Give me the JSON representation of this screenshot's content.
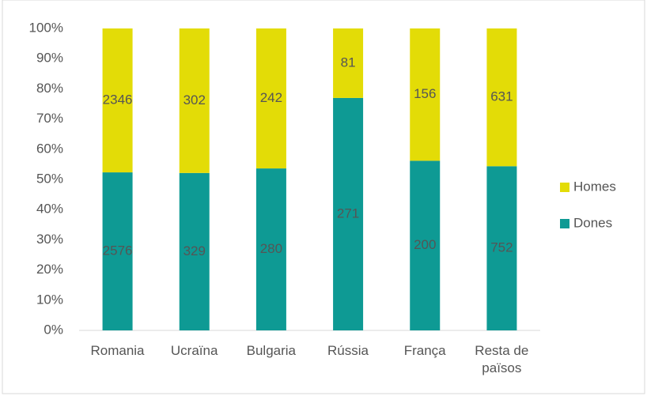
{
  "chart_data": {
    "type": "bar",
    "stacking": "percent",
    "categories": [
      "Romania",
      "Ucraïna",
      "Bulgaria",
      "Rússia",
      "França",
      "Resta de països"
    ],
    "series": [
      {
        "name": "Dones",
        "color": "#0e9a94",
        "values": [
          2576,
          329,
          280,
          271,
          200,
          752
        ]
      },
      {
        "name": "Homes",
        "color": "#e3dc07",
        "values": [
          2346,
          302,
          242,
          81,
          156,
          631
        ]
      }
    ],
    "ylim": [
      0,
      100
    ],
    "yticks": [
      {
        "value": 0,
        "label": "0%"
      },
      {
        "value": 10,
        "label": "10%"
      },
      {
        "value": 20,
        "label": "20%"
      },
      {
        "value": 30,
        "label": "30%"
      },
      {
        "value": 40,
        "label": "40%"
      },
      {
        "value": 50,
        "label": "50%"
      },
      {
        "value": 60,
        "label": "60%"
      },
      {
        "value": 70,
        "label": "70%"
      },
      {
        "value": 80,
        "label": "80%"
      },
      {
        "value": 90,
        "label": "90%"
      },
      {
        "value": 100,
        "label": "100%"
      }
    ],
    "grid": false,
    "legend": "right"
  }
}
